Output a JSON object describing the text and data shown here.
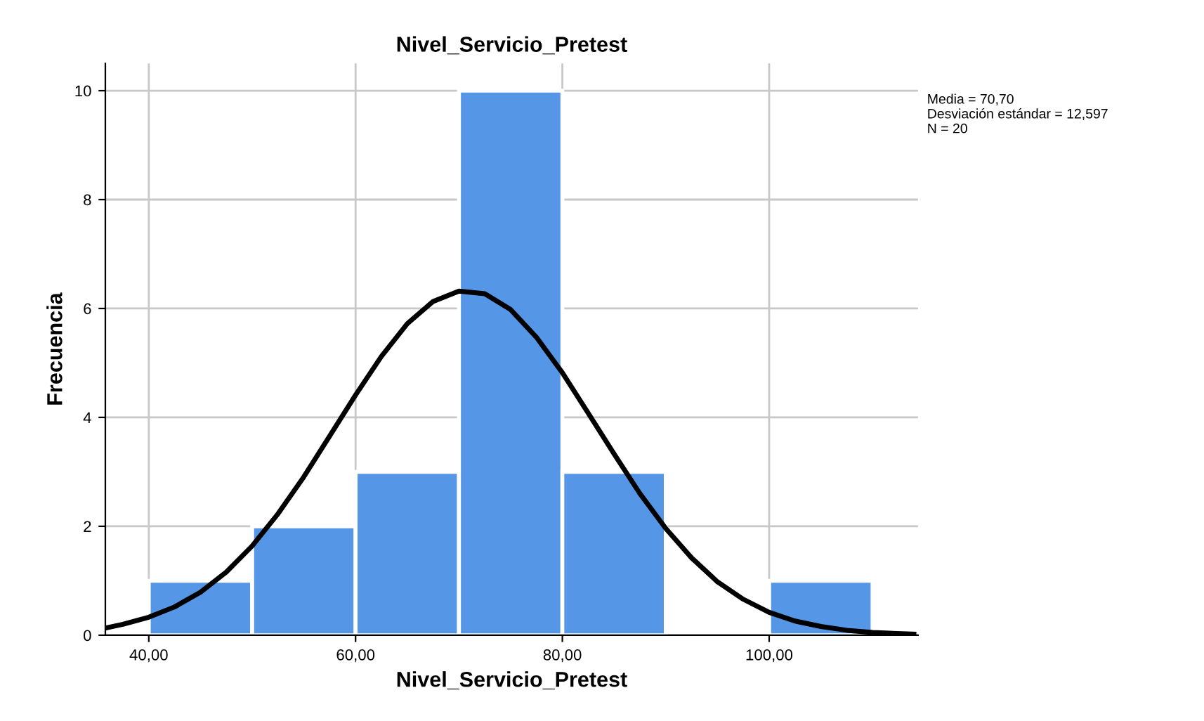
{
  "chart_data": {
    "type": "histogram",
    "title": "Nivel_Servicio_Pretest",
    "xlabel": "Nivel_Servicio_Pretest",
    "ylabel": "Frecuencia",
    "bins": [
      40,
      50,
      60,
      70,
      80,
      90,
      100,
      110
    ],
    "values": [
      1,
      2,
      3,
      10,
      3,
      0,
      1
    ],
    "color": "#5596e6",
    "series": [
      {
        "type": "line",
        "color": "#000000",
        "x": [
          36,
          37.5,
          40,
          42.5,
          45,
          47.5,
          50,
          52.5,
          55,
          57.5,
          60,
          62.5,
          65,
          67.5,
          70,
          72.5,
          75,
          77.5,
          80,
          82.5,
          85,
          87.5,
          90,
          92.5,
          95,
          97.5,
          100,
          102.5,
          105,
          107.5,
          110,
          114
        ],
        "values": [
          0.14,
          0.2,
          0.33,
          0.52,
          0.79,
          1.16,
          1.64,
          2.23,
          2.91,
          3.66,
          4.41,
          5.12,
          5.72,
          6.13,
          6.32,
          6.27,
          5.98,
          5.47,
          4.82,
          4.08,
          3.33,
          2.6,
          1.96,
          1.42,
          0.98,
          0.66,
          0.42,
          0.26,
          0.16,
          0.09,
          0.05,
          0.02
        ]
      }
    ],
    "xlim": [
      35.8,
      114.4
    ],
    "ylim": [
      0,
      10.5
    ],
    "xticks": [
      {
        "value": 40,
        "label": "40,00"
      },
      {
        "value": 60,
        "label": "60,00"
      },
      {
        "value": 80,
        "label": "80,00"
      },
      {
        "value": 100,
        "label": "100,00"
      }
    ],
    "yticks": [
      0,
      2,
      4,
      6,
      8,
      10
    ],
    "grid": true,
    "annotations": [
      "Media = 70,70\nDesviación estándar = 12,597\nN = 20"
    ]
  }
}
